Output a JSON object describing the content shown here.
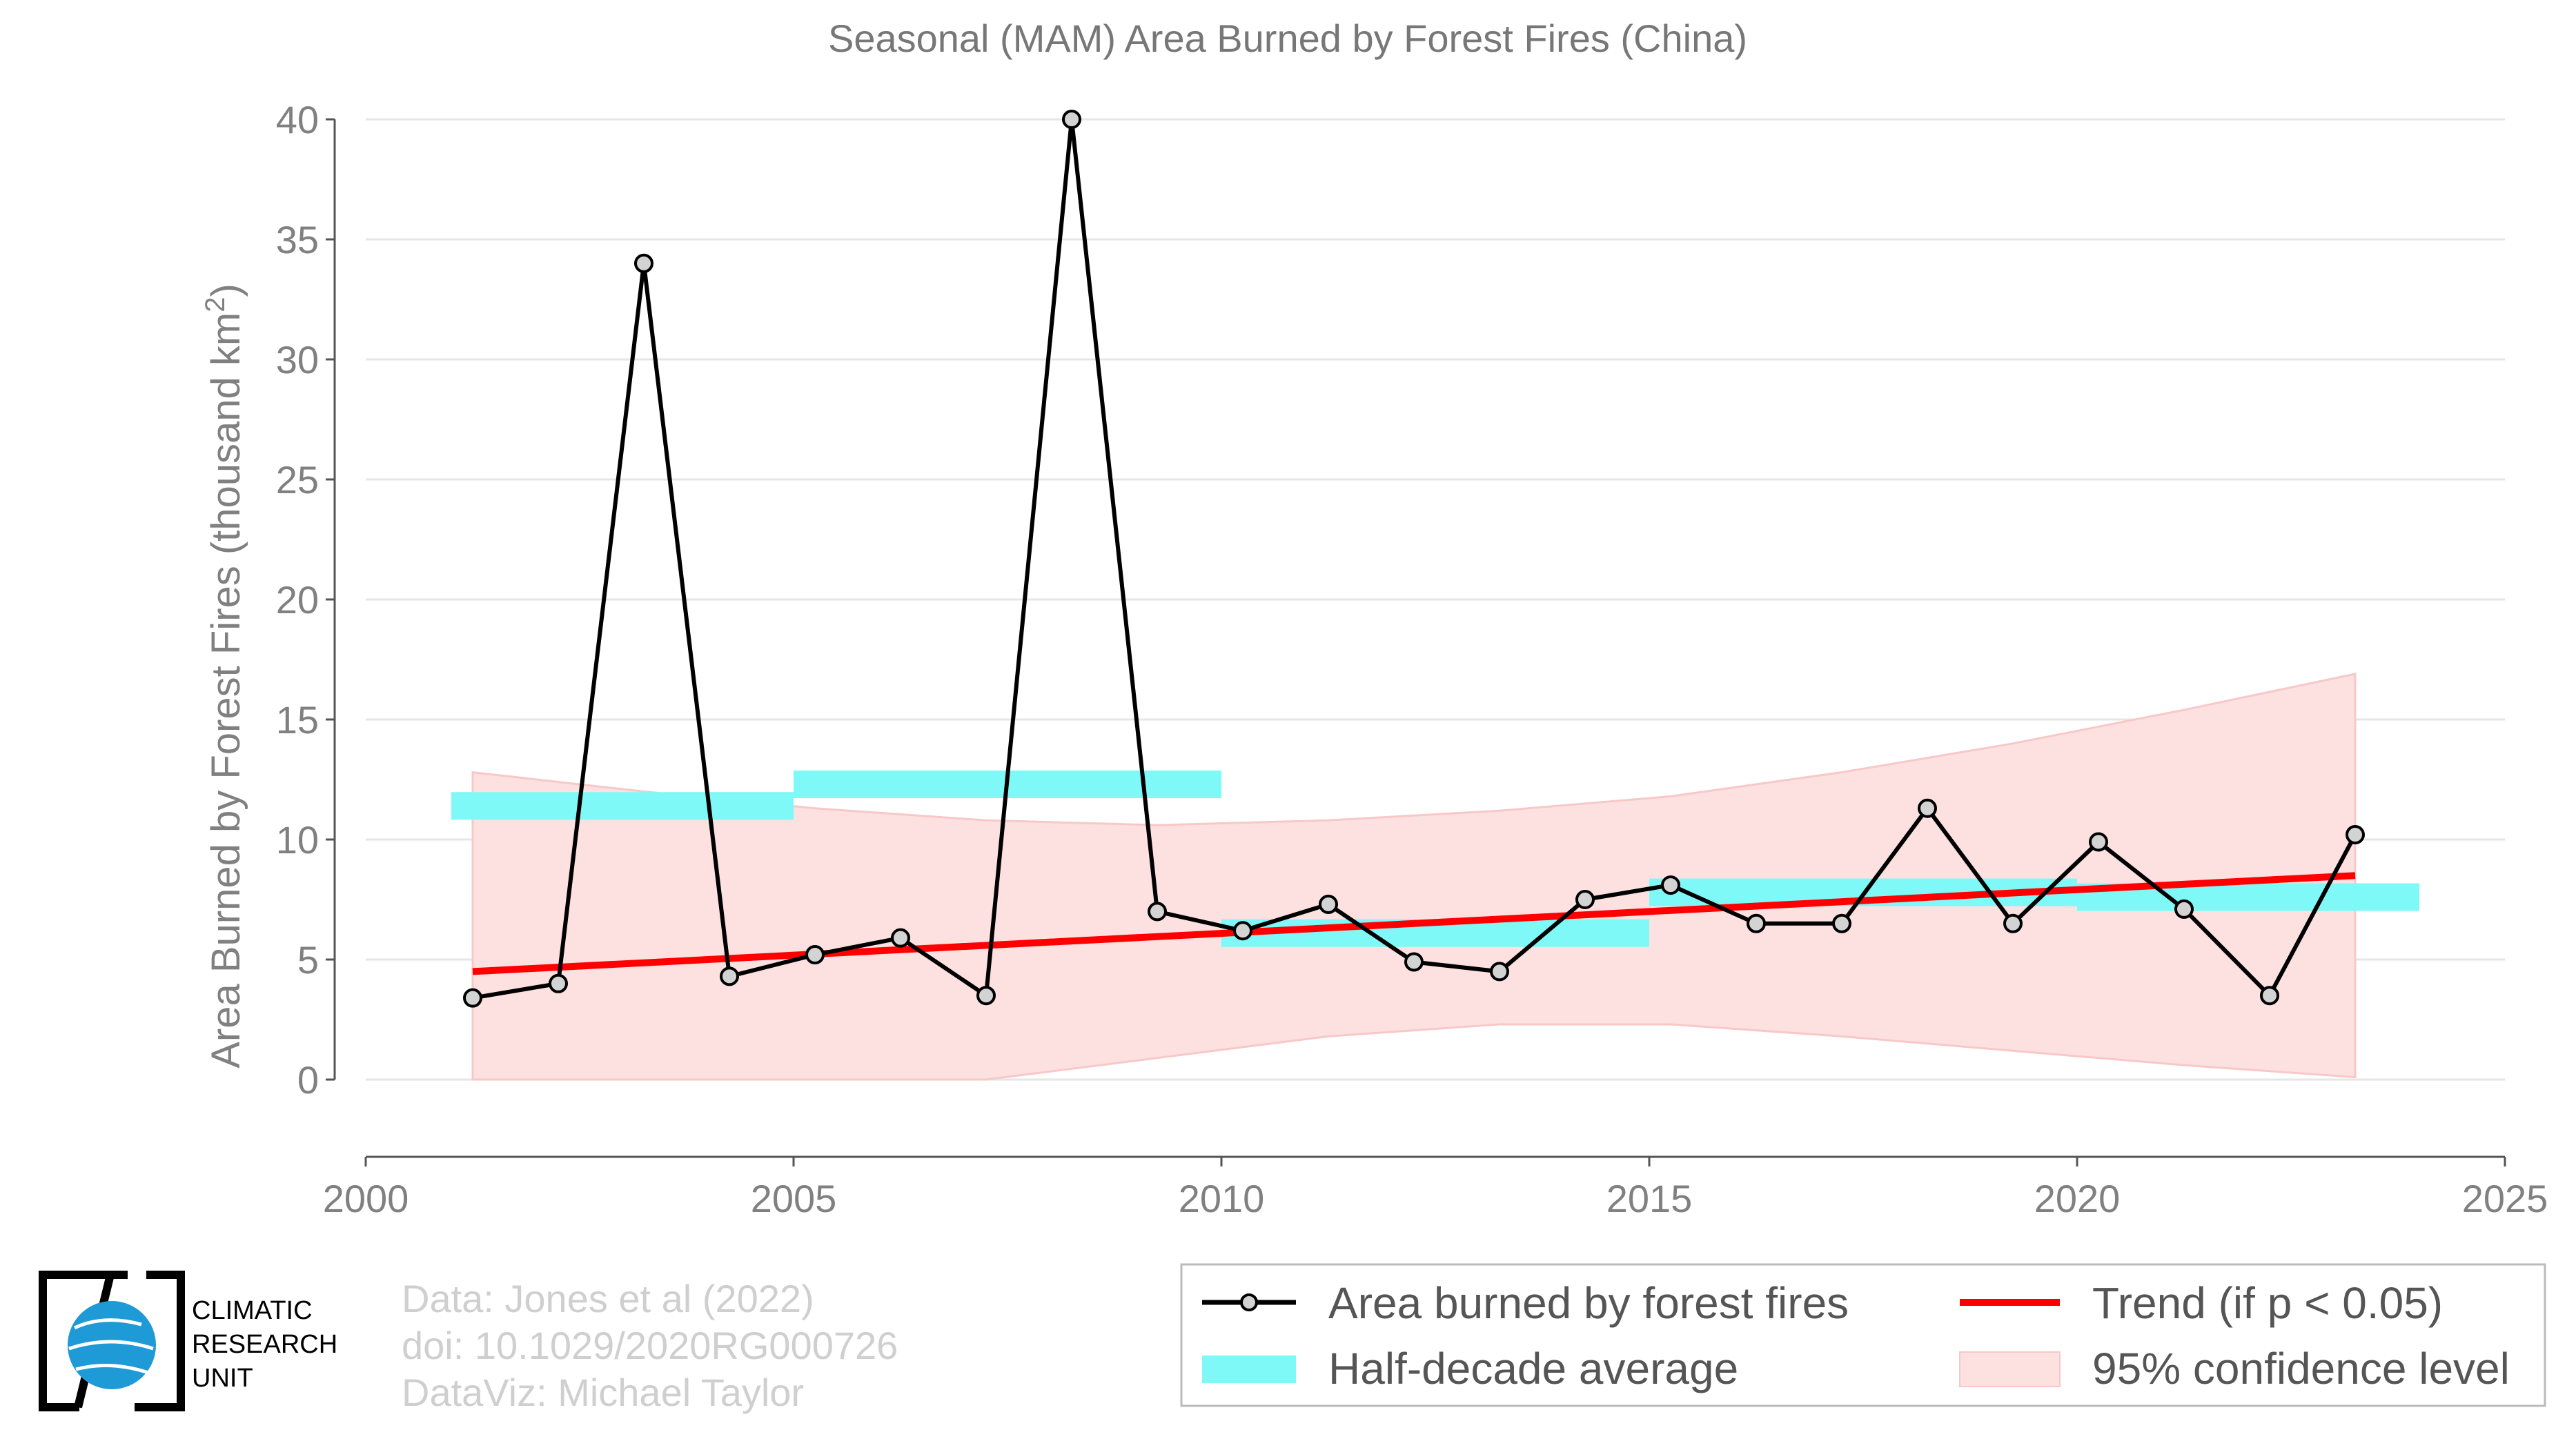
{
  "chart_data": {
    "type": "line",
    "title": "Seasonal (MAM) Area Burned by Forest Fires (China)",
    "ylabel": "Area Burned by Forest Fires (thousand km",
    "ylabel_sup": "2",
    "ylabel_close": ")",
    "xlim": [
      2000,
      2025
    ],
    "ylim": [
      0,
      40
    ],
    "xticks": [
      "2000",
      "2005",
      "2010",
      "2015",
      "2020",
      "2025"
    ],
    "yticks": [
      "0",
      "5",
      "10",
      "15",
      "20",
      "25",
      "30",
      "35",
      "40"
    ],
    "grid": "horizontal",
    "series": [
      {
        "name": "Area burned by forest fires",
        "color": "#000000",
        "x": [
          2001.25,
          2002.25,
          2003.25,
          2004.25,
          2005.25,
          2006.25,
          2007.25,
          2008.25,
          2009.25,
          2010.25,
          2011.25,
          2012.25,
          2013.25,
          2014.25,
          2015.25,
          2016.25,
          2017.25,
          2018.25,
          2019.25,
          2020.25,
          2021.25,
          2022.25,
          2023.25
        ],
        "values": [
          3.4,
          4.0,
          34.0,
          4.3,
          5.2,
          5.9,
          3.5,
          40.0,
          7.0,
          6.2,
          7.3,
          4.9,
          4.5,
          7.5,
          8.1,
          6.5,
          6.5,
          11.3,
          6.5,
          9.9,
          7.1,
          3.5,
          10.2
        ]
      },
      {
        "name": "Trend (if p < 0.05)",
        "color": "#ff0000",
        "x": [
          2001.25,
          2023.25
        ],
        "values": [
          4.5,
          8.5
        ]
      }
    ],
    "half_decade_average": {
      "name": "Half-decade average",
      "color": "#7ff8f8",
      "segments": [
        {
          "x0": 2001,
          "x1": 2005,
          "value": 11.4
        },
        {
          "x0": 2005,
          "x1": 2010,
          "value": 12.3
        },
        {
          "x0": 2010,
          "x1": 2015,
          "value": 6.1
        },
        {
          "x0": 2015,
          "x1": 2020,
          "value": 7.8
        },
        {
          "x0": 2020,
          "x1": 2024,
          "value": 7.6
        }
      ]
    },
    "confidence_band": {
      "name": "95% confidence level",
      "color": "#fde0e0",
      "x": [
        2001.25,
        2003.25,
        2005.25,
        2007.25,
        2009.25,
        2011.25,
        2013.25,
        2015.25,
        2017.25,
        2019.25,
        2021.25,
        2023.25
      ],
      "upper": [
        12.8,
        12.0,
        11.3,
        10.8,
        10.6,
        10.8,
        11.2,
        11.8,
        12.8,
        14.0,
        15.4,
        16.9
      ],
      "lower": [
        0.0,
        0.0,
        0.0,
        0.0,
        0.9,
        1.8,
        2.3,
        2.3,
        1.8,
        1.2,
        0.6,
        0.1
      ]
    }
  },
  "credits": {
    "line1": "Data: Jones et al (2022)",
    "line2": "doi: 10.1029/2020RG000726",
    "line3": "DataViz: Michael Taylor"
  },
  "logo": {
    "line1": "CLIMATIC",
    "line2": "RESEARCH",
    "line3": "UNIT",
    "globe_color": "#1e9ad6"
  },
  "legend": {
    "area": "Area burned by forest fires",
    "half": "Half-decade average",
    "trend": "Trend (if p < 0.05)",
    "ci": "95% confidence level"
  }
}
